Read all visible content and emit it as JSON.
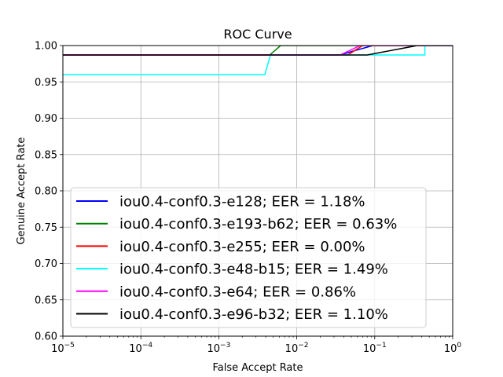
{
  "chart_data": {
    "type": "line",
    "title": "ROC Curve",
    "xlabel": "False Accept Rate",
    "ylabel": "Genuine Accept Rate",
    "xscale": "log",
    "xlim": [
      1e-05,
      1
    ],
    "ylim": [
      0.6,
      1.0
    ],
    "grid": true,
    "legend_position": "lower-left",
    "xticks": [
      {
        "value": 1e-05,
        "base": "10",
        "exp": "−5"
      },
      {
        "value": 0.0001,
        "base": "10",
        "exp": "−4"
      },
      {
        "value": 0.001,
        "base": "10",
        "exp": "−3"
      },
      {
        "value": 0.01,
        "base": "10",
        "exp": "−2"
      },
      {
        "value": 0.1,
        "base": "10",
        "exp": "−1"
      },
      {
        "value": 1,
        "base": "10",
        "exp": "0"
      }
    ],
    "yticks": [
      {
        "value": 0.6,
        "label": "0.60"
      },
      {
        "value": 0.65,
        "label": "0.65"
      },
      {
        "value": 0.7,
        "label": "0.70"
      },
      {
        "value": 0.75,
        "label": "0.75"
      },
      {
        "value": 0.8,
        "label": "0.80"
      },
      {
        "value": 0.85,
        "label": "0.85"
      },
      {
        "value": 0.9,
        "label": "0.90"
      },
      {
        "value": 0.95,
        "label": "0.95"
      },
      {
        "value": 1.0,
        "label": "1.00"
      }
    ],
    "series": [
      {
        "name": "iou0.4-conf0.3-e128; EER = 1.18%",
        "color": "#0000ff",
        "points": [
          [
            1e-05,
            0.987
          ],
          [
            0.036,
            0.987
          ],
          [
            0.055,
            0.993
          ],
          [
            0.095,
            1.0
          ],
          [
            1,
            1.0
          ]
        ]
      },
      {
        "name": "iou0.4-conf0.3-e193-b62; EER = 0.63%",
        "color": "#008000",
        "points": [
          [
            1e-05,
            0.987
          ],
          [
            0.0045,
            0.987
          ],
          [
            0.0062,
            1.0
          ],
          [
            1,
            1.0
          ]
        ]
      },
      {
        "name": "iou0.4-conf0.3-e255; EER = 0.00%",
        "color": "#ff0000",
        "points": [
          [
            1e-05,
            0.987
          ],
          [
            0.045,
            0.987
          ],
          [
            0.07,
            1.0
          ],
          [
            1,
            1.0
          ]
        ]
      },
      {
        "name": "iou0.4-conf0.3-e48-b15; EER = 1.49%",
        "color": "#00ffff",
        "points": [
          [
            1e-05,
            0.96
          ],
          [
            0.0039,
            0.96
          ],
          [
            0.0046,
            0.987
          ],
          [
            0.085,
            0.987
          ],
          [
            0.44,
            0.987
          ],
          [
            0.44,
            1.0
          ],
          [
            1,
            1.0
          ]
        ]
      },
      {
        "name": "iou0.4-conf0.3-e64; EER = 0.86%",
        "color": "#ff00ff",
        "points": [
          [
            1e-05,
            0.987
          ],
          [
            0.036,
            0.987
          ],
          [
            0.065,
            1.0
          ],
          [
            1,
            1.0
          ]
        ]
      },
      {
        "name": "iou0.4-conf0.3-e96-b32; EER = 1.10%",
        "color": "#000000",
        "points": [
          [
            1e-05,
            0.987
          ],
          [
            0.08,
            0.987
          ],
          [
            0.35,
            1.0
          ],
          [
            1,
            1.0
          ]
        ]
      }
    ]
  }
}
